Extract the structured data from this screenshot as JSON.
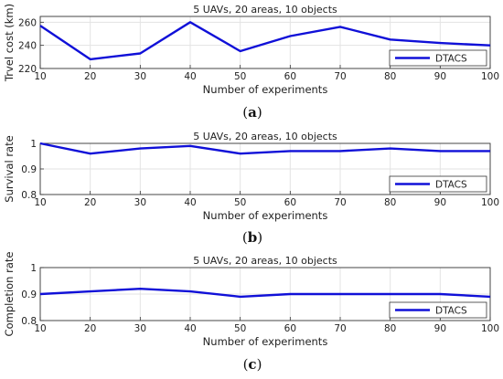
{
  "chart_data": [
    {
      "type": "line",
      "caption_letter": "a",
      "title": "5 UAVs, 20 areas, 10 objects",
      "xlabel": "Number of experiments",
      "ylabel": "Trvel cost (km)",
      "xlim": [
        10,
        100
      ],
      "ylim": [
        220,
        265
      ],
      "xticks": [
        "10",
        "20",
        "30",
        "40",
        "50",
        "60",
        "70",
        "80",
        "90",
        "100"
      ],
      "yticks": [
        "220",
        "240",
        "260"
      ],
      "legend_position": "bottom-right",
      "series_color": "#1010d8",
      "series": [
        {
          "name": "DTACS",
          "x": [
            10,
            20,
            30,
            40,
            50,
            60,
            70,
            80,
            90,
            100
          ],
          "y": [
            257,
            228,
            233,
            260,
            235,
            248,
            256,
            245,
            242,
            240
          ]
        }
      ]
    },
    {
      "type": "line",
      "caption_letter": "b",
      "title": "5 UAVs, 20 areas, 10 objects",
      "xlabel": "Number of experiments",
      "ylabel": "Survival rate",
      "xlim": [
        10,
        100
      ],
      "ylim": [
        0.8,
        1.0
      ],
      "xticks": [
        "10",
        "20",
        "30",
        "40",
        "50",
        "60",
        "70",
        "80",
        "90",
        "100"
      ],
      "yticks": [
        "0.8",
        "0.9",
        "1"
      ],
      "legend_position": "bottom-right",
      "series_color": "#1010d8",
      "series": [
        {
          "name": "DTACS",
          "x": [
            10,
            20,
            30,
            40,
            50,
            60,
            70,
            80,
            90,
            100
          ],
          "y": [
            1.0,
            0.96,
            0.98,
            0.99,
            0.96,
            0.97,
            0.97,
            0.98,
            0.97,
            0.97
          ]
        }
      ]
    },
    {
      "type": "line",
      "caption_letter": "c",
      "title": "5 UAVs, 20 areas, 10 objects",
      "xlabel": "Number of experiments",
      "ylabel": "Completion rate",
      "xlim": [
        10,
        100
      ],
      "ylim": [
        0.8,
        1.0
      ],
      "xticks": [
        "10",
        "20",
        "30",
        "40",
        "50",
        "60",
        "70",
        "80",
        "90",
        "100"
      ],
      "yticks": [
        "0.8",
        "0.9",
        "1"
      ],
      "legend_position": "bottom-right",
      "series_color": "#1010d8",
      "series": [
        {
          "name": "DTACS",
          "x": [
            10,
            20,
            30,
            40,
            50,
            60,
            70,
            80,
            90,
            100
          ],
          "y": [
            0.9,
            0.91,
            0.92,
            0.91,
            0.89,
            0.9,
            0.9,
            0.9,
            0.9,
            0.89
          ]
        }
      ]
    }
  ]
}
